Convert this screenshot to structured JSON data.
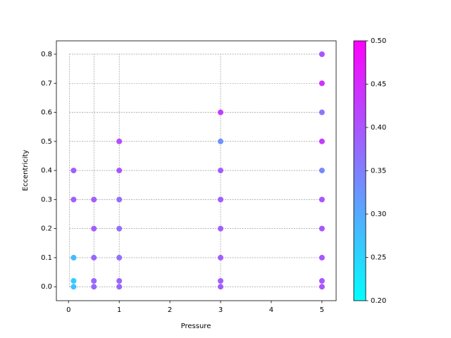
{
  "chart_data": {
    "type": "scatter",
    "x_label": "Pressure",
    "y_label": "Eccentricity",
    "x": [
      0.1,
      0.1,
      0.1,
      0.1,
      0.1,
      0.5,
      0.5,
      0.5,
      0.5,
      0.5,
      1,
      1,
      1,
      1,
      1,
      1,
      1,
      3,
      3,
      3,
      3,
      3,
      3,
      3,
      3,
      5,
      5,
      5,
      5,
      5,
      5,
      5,
      5,
      5,
      5
    ],
    "values": [
      0.4,
      0.3,
      0.1,
      0.02,
      0.0,
      0.3,
      0.2,
      0.1,
      0.02,
      0.0,
      0.5,
      0.4,
      0.3,
      0.2,
      0.1,
      0.02,
      0.0,
      0.6,
      0.5,
      0.4,
      0.3,
      0.2,
      0.1,
      0.02,
      0.0,
      0.8,
      0.7,
      0.6,
      0.5,
      0.4,
      0.3,
      0.2,
      0.1,
      0.02,
      0.0
    ],
    "c": [
      0.39,
      0.39,
      0.28,
      0.26,
      0.27,
      0.39,
      0.39,
      0.38,
      0.38,
      0.38,
      0.41,
      0.4,
      0.37,
      0.37,
      0.37,
      0.38,
      0.38,
      0.43,
      0.33,
      0.39,
      0.39,
      0.39,
      0.39,
      0.39,
      0.39,
      0.4,
      0.44,
      0.36,
      0.43,
      0.34,
      0.4,
      0.4,
      0.4,
      0.4,
      0.4
    ],
    "colormap": "cool",
    "clim": [
      0.2,
      0.5
    ],
    "cticks": [
      {
        "value": 0.2,
        "label": "0.20"
      },
      {
        "value": 0.25,
        "label": "0.25"
      },
      {
        "value": 0.3,
        "label": "0.30"
      },
      {
        "value": 0.35,
        "label": "0.35"
      },
      {
        "value": 0.4,
        "label": "0.40"
      },
      {
        "value": 0.45,
        "label": "0.45"
      },
      {
        "value": 0.5,
        "label": "0.50"
      }
    ],
    "xlim": [
      -0.24,
      5.28
    ],
    "xticks": [
      0,
      1,
      2,
      3,
      4,
      5
    ],
    "ylim": [
      -0.048,
      0.846
    ],
    "yticks": [
      {
        "value": 0.0,
        "label": "0.0"
      },
      {
        "value": 0.1,
        "label": "0.1"
      },
      {
        "value": 0.2,
        "label": "0.2"
      },
      {
        "value": 0.3,
        "label": "0.3"
      },
      {
        "value": 0.4,
        "label": "0.4"
      },
      {
        "value": 0.5,
        "label": "0.5"
      },
      {
        "value": 0.6,
        "label": "0.6"
      },
      {
        "value": 0.7,
        "label": "0.7"
      },
      {
        "value": 0.8,
        "label": "0.8"
      }
    ],
    "grid": true
  }
}
